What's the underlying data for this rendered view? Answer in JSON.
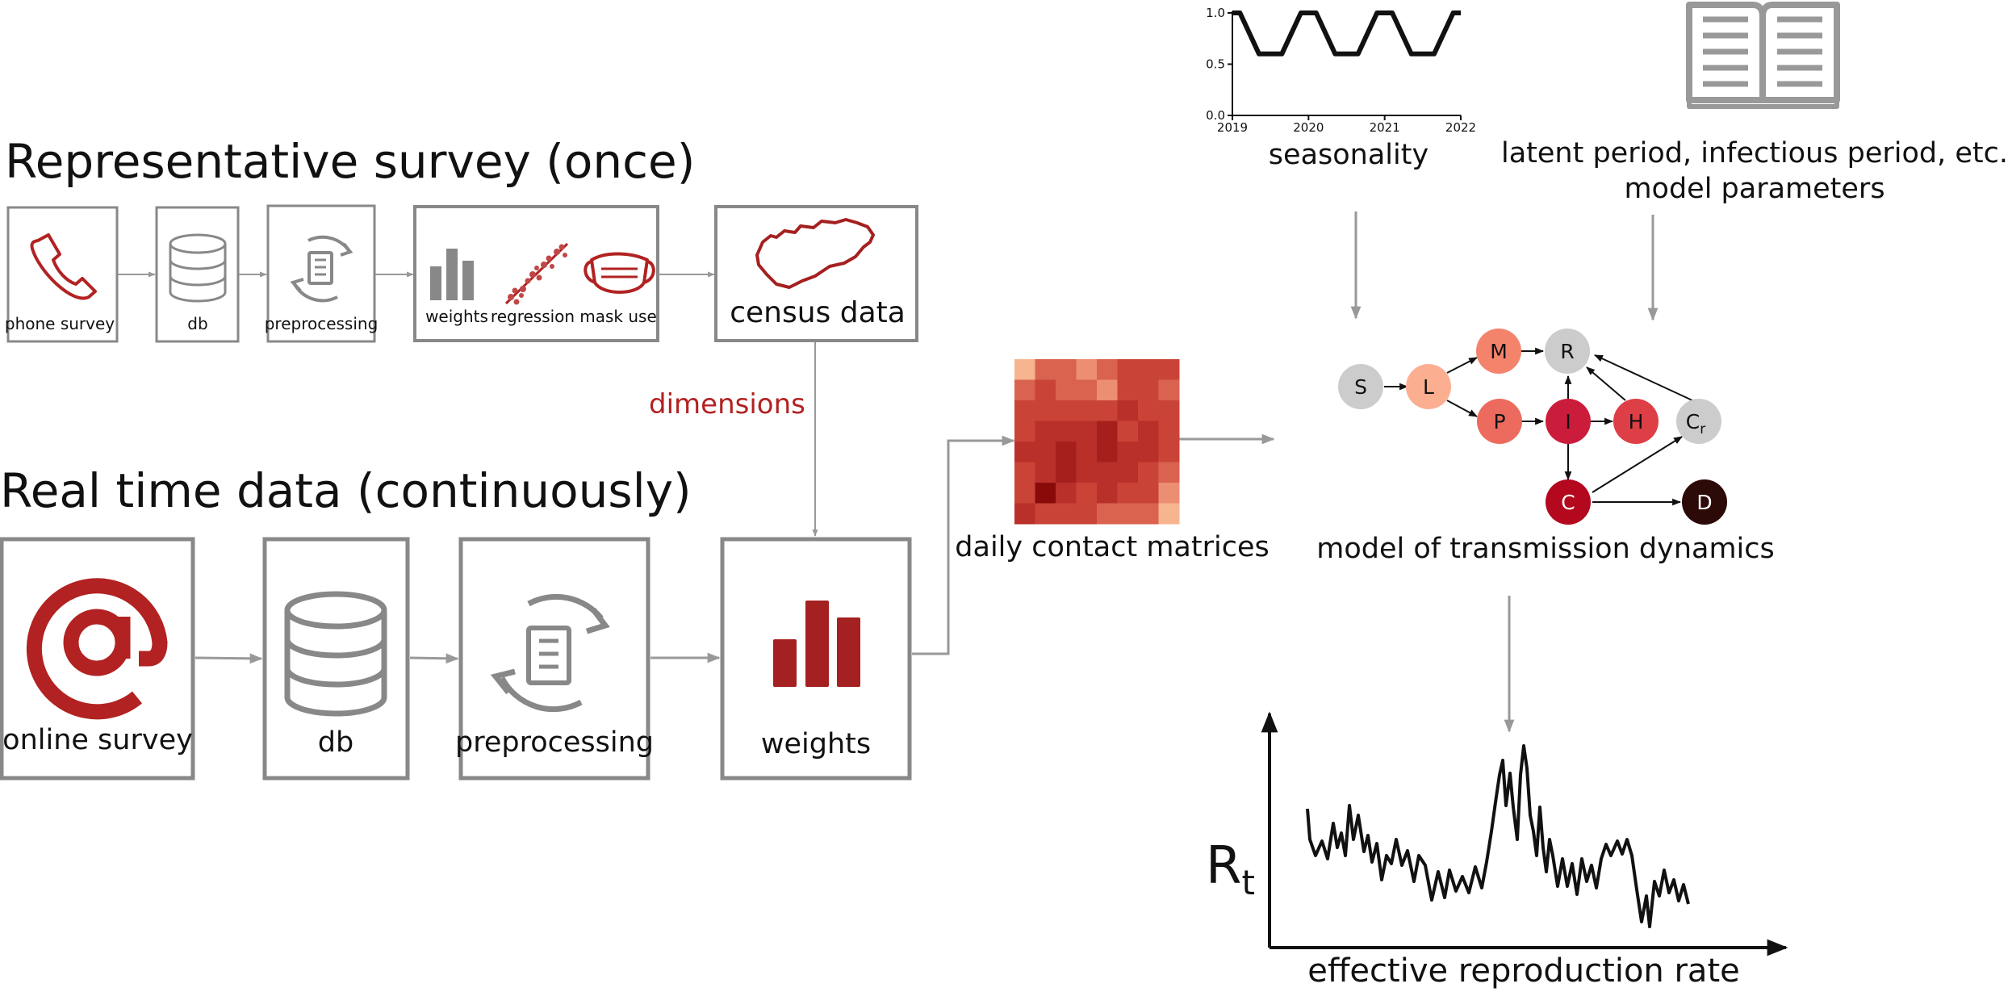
{
  "survey_title": "Representative survey (once)",
  "realtime_title": "Real time data (continuously)",
  "top_pipeline": {
    "phone": "phone survey",
    "db": "db",
    "preprocessing": "preprocessing",
    "weights": "weights",
    "regression": "regression",
    "mask": "mask use",
    "census": "census data"
  },
  "dimensions_label": "dimensions",
  "bottom_pipeline": {
    "online": "online survey",
    "db": "db",
    "preprocessing": "preprocessing",
    "weights": "weights"
  },
  "matrix_label": "daily contact matrices",
  "seasonality": {
    "label": "seasonality",
    "x_ticks": [
      "2019",
      "2020",
      "2021",
      "2022"
    ],
    "y_ticks": [
      "0.0",
      "0.5",
      "1.0"
    ],
    "chart_data": {
      "type": "line",
      "x": [
        2019.0,
        2019.1,
        2019.35,
        2019.65,
        2019.9,
        2020.1,
        2020.35,
        2020.65,
        2020.9,
        2021.1,
        2021.35,
        2021.65,
        2021.9,
        2022.0
      ],
      "values": [
        1.0,
        1.0,
        0.6,
        0.6,
        1.0,
        1.0,
        0.6,
        0.6,
        1.0,
        1.0,
        0.6,
        0.6,
        1.0,
        1.0
      ],
      "xlim": [
        2019,
        2022
      ],
      "ylim": [
        0.0,
        1.0
      ]
    }
  },
  "params": {
    "line1": "latent period, infectious period, etc.",
    "line2": "model parameters"
  },
  "model": {
    "label": "model of transmission dynamics",
    "nodes": [
      {
        "id": "S",
        "label": "S",
        "color": "#cccccc",
        "text_color": "#111111"
      },
      {
        "id": "L",
        "label": "L",
        "color": "#fcae91",
        "text_color": "#111111"
      },
      {
        "id": "M",
        "label": "M",
        "color": "#f4836c",
        "text_color": "#111111"
      },
      {
        "id": "P",
        "label": "P",
        "color": "#ec6b5e",
        "text_color": "#111111"
      },
      {
        "id": "R",
        "label": "R",
        "color": "#cccccc",
        "text_color": "#111111"
      },
      {
        "id": "I",
        "label": "I",
        "color": "#cb1c3c",
        "text_color": "#111111"
      },
      {
        "id": "H",
        "label": "H",
        "color": "#de3e45",
        "text_color": "#111111"
      },
      {
        "id": "Cr",
        "label": "C",
        "sub": "r",
        "color": "#cccccc",
        "text_color": "#111111"
      },
      {
        "id": "C",
        "label": "C",
        "color": "#b4081e",
        "text_color": "#ffffff"
      },
      {
        "id": "D",
        "label": "D",
        "color": "#2c0a08",
        "text_color": "#ffffff"
      }
    ]
  },
  "rt": {
    "symbol": "R",
    "subscript": "t",
    "xlabel": "effective reproduction rate"
  },
  "colors": {
    "accent_red": "#b22222",
    "box_gray": "#888888",
    "arrow_gray": "#999999"
  }
}
